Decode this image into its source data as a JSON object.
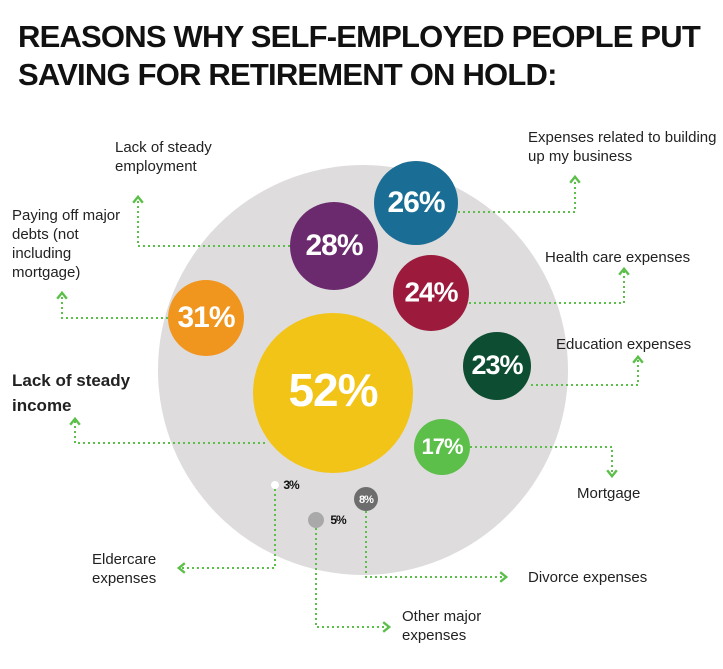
{
  "chart_data": {
    "type": "bubble",
    "title": "REASONS WHY SELF-EMPLOYED PEOPLE PUT SAVING FOR RETIREMENT ON HOLD:",
    "categories": [
      "Lack of steady income",
      "Paying off major debts (not including mortgage)",
      "Lack of steady employment",
      "Expenses related to building up my business",
      "Health care expenses",
      "Education expenses",
      "Mortgage",
      "Divorce expenses",
      "Other major expenses",
      "Eldercare expenses"
    ],
    "values": [
      52,
      31,
      28,
      26,
      24,
      23,
      17,
      8,
      5,
      3
    ],
    "value_labels": [
      "52%",
      "31%",
      "28%",
      "26%",
      "24%",
      "23%",
      "17%",
      "8%",
      "5%",
      "3%"
    ],
    "colors": [
      "#f2c417",
      "#f0961e",
      "#6a2a6d",
      "#1a6e95",
      "#9c1b3d",
      "#0d4d32",
      "#5bbf4a",
      "#6d6d6d",
      "#a9a9a9",
      "#ffffff"
    ]
  }
}
